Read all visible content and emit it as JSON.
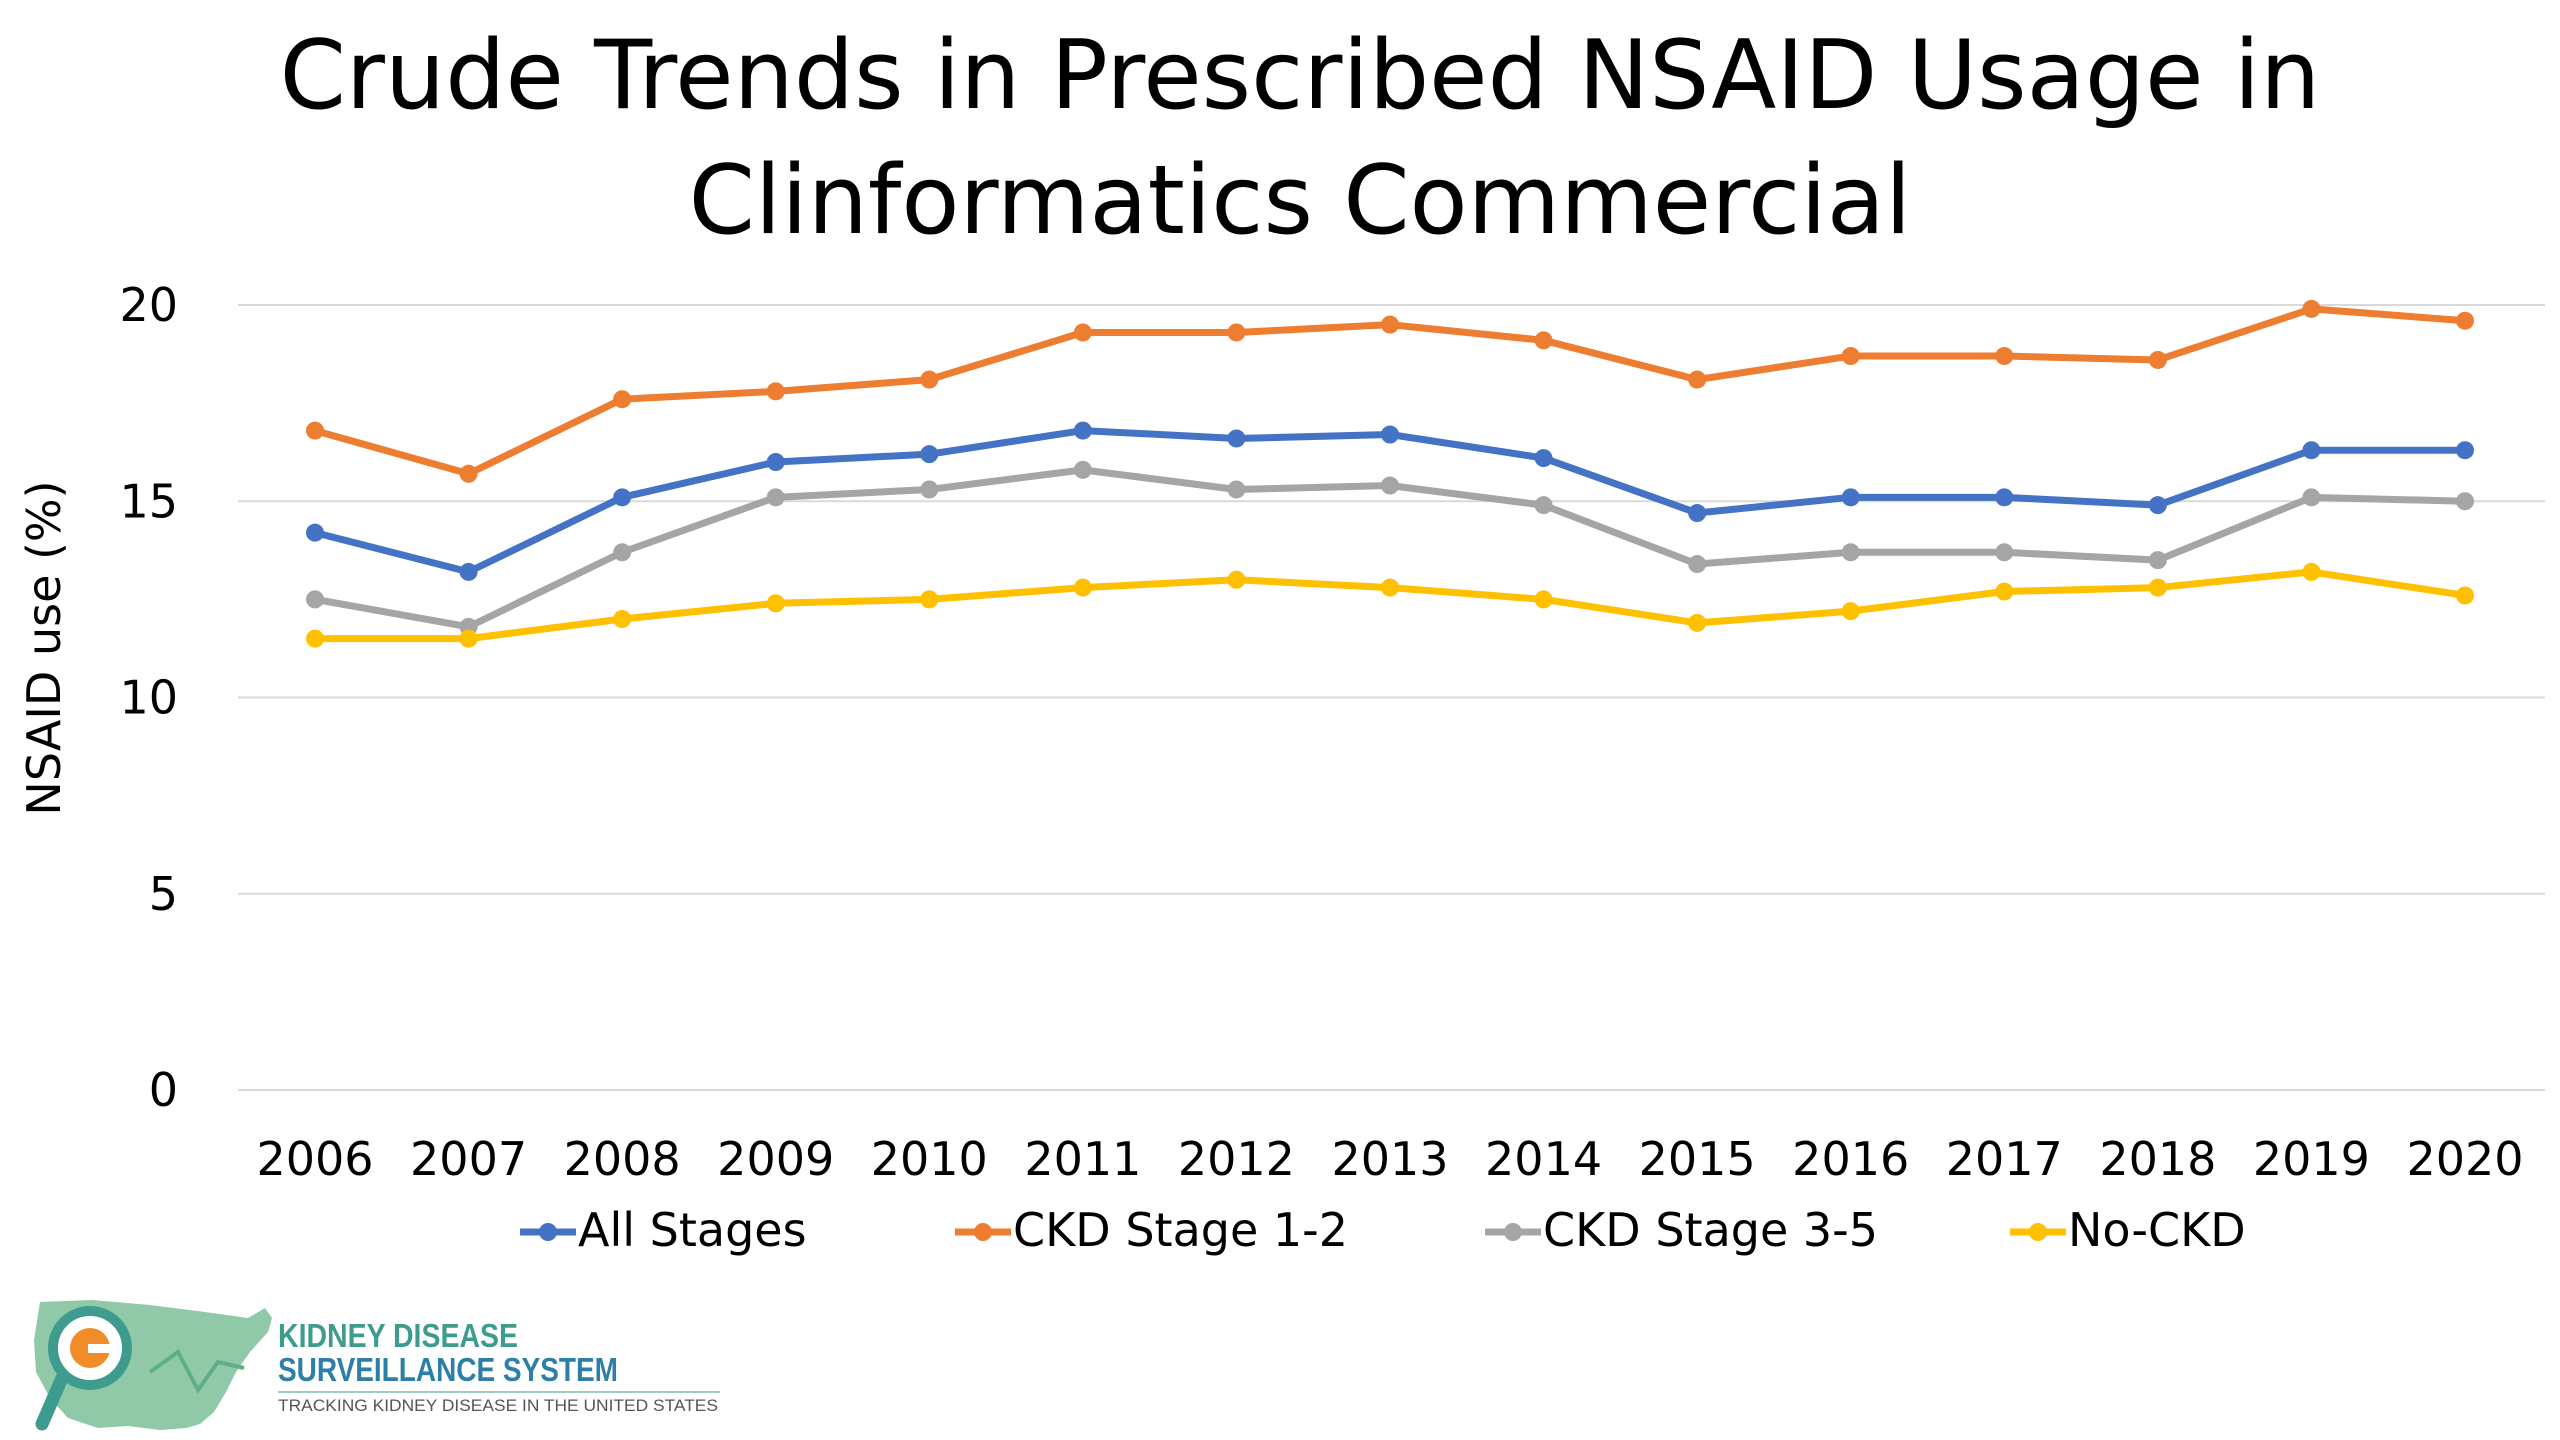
{
  "chart_data": {
    "type": "line",
    "title_lines": [
      "Crude Trends in Prescribed NSAID Usage in",
      "Clinformatics Commercial"
    ],
    "xlabel": "",
    "ylabel": "NSAID use (%)",
    "ylim": [
      0,
      20
    ],
    "yticks": [
      "0",
      "5",
      "10",
      "15",
      "20"
    ],
    "categories": [
      "2006",
      "2007",
      "2008",
      "2009",
      "2010",
      "2011",
      "2012",
      "2013",
      "2014",
      "2015",
      "2016",
      "2017",
      "2018",
      "2019",
      "2020"
    ],
    "grid": true,
    "legend_position": "bottom",
    "series": [
      {
        "name": "All Stages",
        "color": "#4472C4",
        "values": [
          14.2,
          13.2,
          15.1,
          16.0,
          16.2,
          16.8,
          16.6,
          16.7,
          16.1,
          14.7,
          15.1,
          15.1,
          14.9,
          16.3,
          16.3
        ]
      },
      {
        "name": "CKD Stage 1-2",
        "color": "#ED7D31",
        "values": [
          16.8,
          15.7,
          17.6,
          17.8,
          18.1,
          19.3,
          19.3,
          19.5,
          19.1,
          18.1,
          18.7,
          18.7,
          18.6,
          19.9,
          19.6
        ]
      },
      {
        "name": "CKD Stage 3-5",
        "color": "#A5A5A5",
        "values": [
          12.5,
          11.8,
          13.7,
          15.1,
          15.3,
          15.8,
          15.3,
          15.4,
          14.9,
          13.4,
          13.7,
          13.7,
          13.5,
          15.1,
          15.0
        ]
      },
      {
        "name": "No-CKD",
        "color": "#FFC000",
        "values": [
          11.5,
          11.5,
          12.0,
          12.4,
          12.5,
          12.8,
          13.0,
          12.8,
          12.5,
          11.9,
          12.2,
          12.7,
          12.8,
          13.2,
          12.6
        ]
      }
    ]
  },
  "logo": {
    "line1": "KIDNEY DISEASE",
    "line2": "SURVEILLANCE SYSTEM",
    "line3": "TRACKING KIDNEY DISEASE IN THE UNITED STATES",
    "icon": "us-map-magnifier-icon",
    "colors": {
      "map": "#8FC9A8",
      "teal": "#3E9C8E",
      "blue": "#2E7FA8",
      "orange": "#F28C28"
    }
  }
}
